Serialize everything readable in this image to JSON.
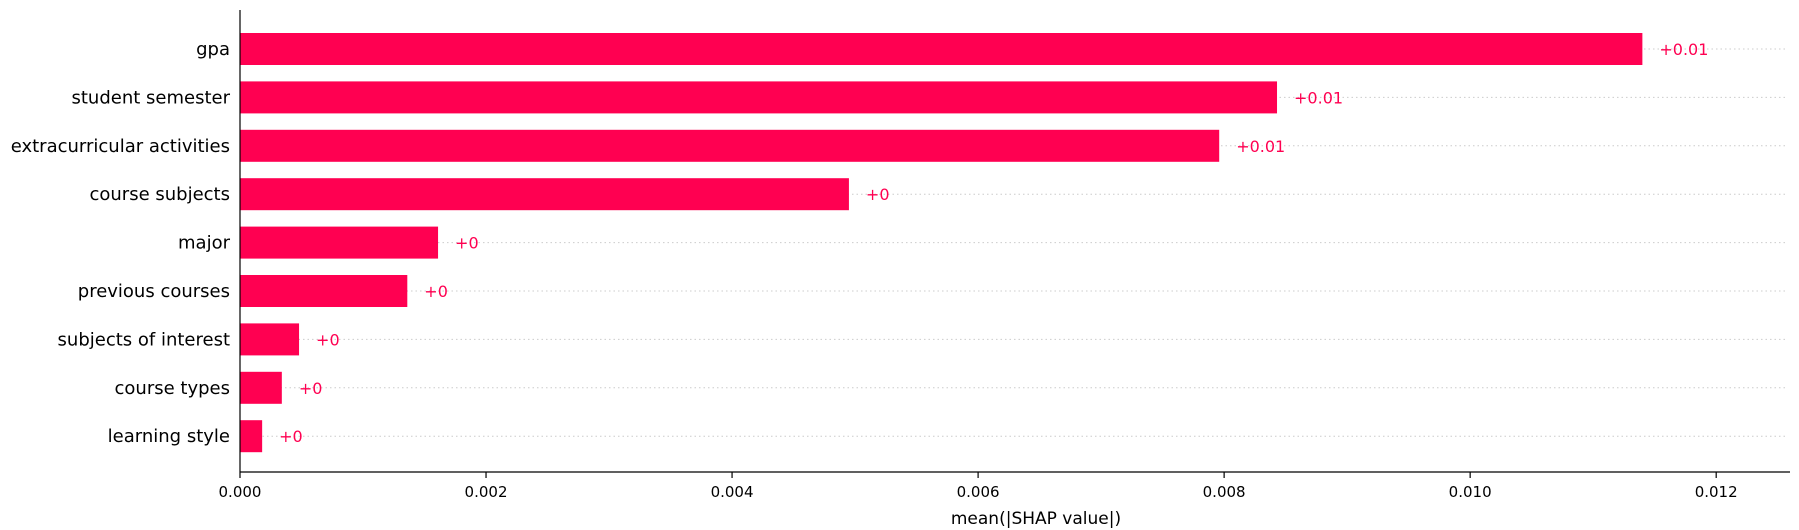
{
  "chart_data": {
    "type": "bar",
    "orientation": "horizontal",
    "title": "",
    "xlabel": "mean(|SHAP value|)",
    "ylabel": "",
    "xlim": [
      0,
      0.0126
    ],
    "x_ticks": [
      0.0,
      0.002,
      0.004,
      0.006,
      0.008,
      0.01,
      0.012
    ],
    "x_tick_labels": [
      "0.000",
      "0.002",
      "0.004",
      "0.006",
      "0.008",
      "0.010",
      "0.012"
    ],
    "grid": "dotted horizontal row guides",
    "bar_color": "#ff0051",
    "label_color": "#ff0051",
    "categories": [
      "gpa",
      "student semester",
      "extracurricular activities",
      "course subjects",
      "major",
      "previous courses",
      "subjects of interest",
      "course types",
      "learning style"
    ],
    "values": [
      0.0114,
      0.00843,
      0.00796,
      0.00495,
      0.00161,
      0.00136,
      0.00048,
      0.00034,
      0.00018
    ],
    "data_labels": [
      "+0.01",
      "+0.01",
      "+0.01",
      "+0",
      "+0",
      "+0",
      "+0",
      "+0",
      "+0"
    ]
  }
}
